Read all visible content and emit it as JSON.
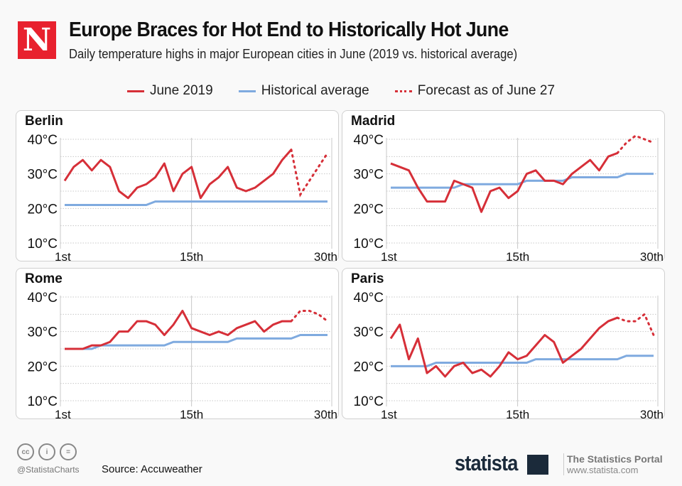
{
  "header": {
    "logo_letter": "N",
    "title": "Europe Braces for Hot End to Historically Hot June",
    "subtitle": "Daily temperature highs in major European cities in June (2019 vs. historical average)"
  },
  "legend": [
    {
      "label": "June 2019",
      "color": "#d62f38",
      "style": "solid"
    },
    {
      "label": "Historical average",
      "color": "#7faadf",
      "style": "solid"
    },
    {
      "label": "Forecast as of June 27",
      "color": "#d62f38",
      "style": "dotted"
    }
  ],
  "chart_data": [
    {
      "type": "line",
      "title": "Berlin",
      "x": "day of June 1-30",
      "ylim": [
        10,
        40
      ],
      "yticks": [
        "40°C",
        "30°C",
        "20°C",
        "10°C"
      ],
      "xticks": [
        "1st",
        "15th",
        "30th"
      ],
      "june_2019": [
        28,
        32,
        34,
        31,
        34,
        32,
        25,
        23,
        26,
        27,
        29,
        33,
        25,
        30,
        32,
        23,
        27,
        29,
        32,
        26,
        25,
        26,
        28,
        30,
        34,
        37
      ],
      "forecast": {
        "start_day": 26,
        "values": [
          37,
          24,
          28,
          32,
          36
        ]
      },
      "historical": [
        21,
        21,
        21,
        21,
        21,
        21,
        21,
        21,
        21,
        21,
        22,
        22,
        22,
        22,
        22,
        22,
        22,
        22,
        22,
        22,
        22,
        22,
        22,
        22,
        22,
        22,
        22,
        22,
        22,
        22
      ]
    },
    {
      "type": "line",
      "title": "Madrid",
      "ylim": [
        10,
        40
      ],
      "yticks": [
        "40°C",
        "30°C",
        "20°C",
        "10°C"
      ],
      "xticks": [
        "1st",
        "15th",
        "30th"
      ],
      "june_2019": [
        33,
        32,
        31,
        26,
        22,
        22,
        22,
        28,
        27,
        26,
        19,
        25,
        26,
        23,
        25,
        30,
        31,
        28,
        28,
        27,
        30,
        32,
        34,
        31,
        35,
        36
      ],
      "forecast": {
        "start_day": 26,
        "values": [
          36,
          39,
          41,
          40,
          39
        ]
      },
      "historical": [
        26,
        26,
        26,
        26,
        26,
        26,
        26,
        26,
        27,
        27,
        27,
        27,
        27,
        27,
        27,
        28,
        28,
        28,
        28,
        28,
        29,
        29,
        29,
        29,
        29,
        29,
        30,
        30,
        30,
        30
      ]
    },
    {
      "type": "line",
      "title": "Rome",
      "ylim": [
        10,
        40
      ],
      "yticks": [
        "40°C",
        "30°C",
        "20°C",
        "10°C"
      ],
      "xticks": [
        "1st",
        "15th",
        "30th"
      ],
      "june_2019": [
        25,
        25,
        25,
        26,
        26,
        27,
        30,
        30,
        33,
        33,
        32,
        29,
        32,
        36,
        31,
        30,
        29,
        30,
        29,
        31,
        32,
        33,
        30,
        32,
        33,
        33
      ],
      "forecast": {
        "start_day": 26,
        "values": [
          33,
          36,
          36,
          35,
          33
        ]
      },
      "historical": [
        25,
        25,
        25,
        25,
        26,
        26,
        26,
        26,
        26,
        26,
        26,
        26,
        27,
        27,
        27,
        27,
        27,
        27,
        27,
        28,
        28,
        28,
        28,
        28,
        28,
        28,
        29,
        29,
        29,
        29
      ]
    },
    {
      "type": "line",
      "title": "Paris",
      "ylim": [
        10,
        40
      ],
      "yticks": [
        "40°C",
        "30°C",
        "20°C",
        "10°C"
      ],
      "xticks": [
        "1st",
        "15th",
        "30th"
      ],
      "june_2019": [
        28,
        32,
        22,
        28,
        18,
        20,
        17,
        20,
        21,
        18,
        19,
        17,
        20,
        24,
        22,
        23,
        26,
        29,
        27,
        21,
        23,
        25,
        28,
        31,
        33,
        34
      ],
      "forecast": {
        "start_day": 26,
        "values": [
          34,
          33,
          33,
          35,
          29
        ]
      },
      "historical": [
        20,
        20,
        20,
        20,
        20,
        21,
        21,
        21,
        21,
        21,
        21,
        21,
        21,
        21,
        21,
        21,
        22,
        22,
        22,
        22,
        22,
        22,
        22,
        22,
        22,
        22,
        23,
        23,
        23,
        23
      ]
    }
  ],
  "footer": {
    "handle": "@StatistaCharts",
    "source": "Source: Accuweather",
    "brand": "statista",
    "portal": "The Statistics Portal",
    "url": "www.statista.com",
    "cc_icons": [
      "cc",
      "by",
      "nd"
    ]
  }
}
